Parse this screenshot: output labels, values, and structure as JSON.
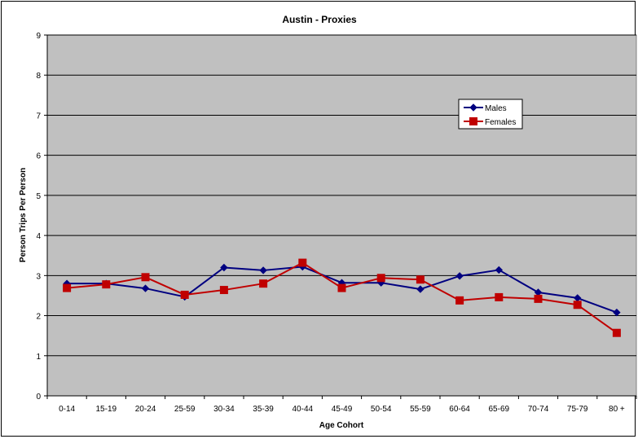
{
  "chart_data": {
    "type": "line",
    "title": "Austin - Proxies",
    "xlabel": "Age Cohort",
    "ylabel": "Person Trips Per Person",
    "ylim": [
      0,
      9
    ],
    "yticks": [
      "0",
      "1",
      "2",
      "3",
      "4",
      "5",
      "6",
      "7",
      "8",
      "9"
    ],
    "grid": "horizontal",
    "legend_position": "top-right",
    "categories": [
      "0-14",
      "15-19",
      "20-24",
      "25-59",
      "30-34",
      "35-39",
      "40-44",
      "45-49",
      "50-54",
      "55-59",
      "60-64",
      "65-69",
      "70-74",
      "75-79",
      "80 +"
    ],
    "series": [
      {
        "name": "Males",
        "color": "#000080",
        "marker": "diamond",
        "values": [
          2.8,
          2.8,
          2.68,
          2.47,
          3.2,
          3.13,
          3.22,
          2.82,
          2.82,
          2.66,
          2.99,
          3.14,
          2.58,
          2.44,
          2.08
        ]
      },
      {
        "name": "Females",
        "color": "#C00000",
        "marker": "square",
        "values": [
          2.69,
          2.78,
          2.96,
          2.52,
          2.64,
          2.8,
          3.32,
          2.69,
          2.94,
          2.9,
          2.38,
          2.46,
          2.42,
          2.27,
          1.57
        ]
      }
    ],
    "plot_background": "#C0C0C0"
  }
}
